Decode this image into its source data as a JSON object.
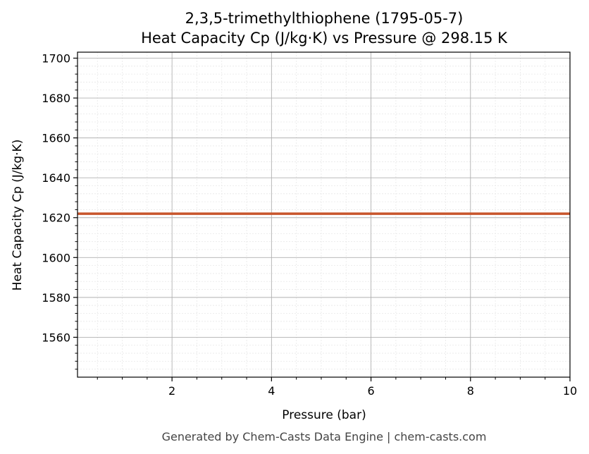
{
  "chart_data": {
    "type": "line",
    "title": "2,3,5-trimethylthiophene (1795-05-7)",
    "subtitle": "Heat Capacity Cp (J/kg·K) vs Pressure @ 298.15 K",
    "xlabel": "Pressure (bar)",
    "ylabel": "Heat Capacity Cp (J/kg·K)",
    "xlim": [
      0.1,
      10
    ],
    "ylim": [
      1540,
      1703
    ],
    "x_ticks": [
      2,
      4,
      6,
      8,
      10
    ],
    "y_ticks": [
      1560,
      1580,
      1600,
      1620,
      1640,
      1660,
      1680,
      1700
    ],
    "grid": true,
    "minor_grid": true,
    "series": [
      {
        "color": "#c8552b",
        "x": [
          0.1,
          1,
          2,
          3,
          4,
          5,
          6,
          7,
          8,
          9,
          10
        ],
        "y": [
          1622,
          1622,
          1622,
          1622,
          1622,
          1622,
          1622,
          1622,
          1622,
          1622,
          1622
        ]
      }
    ]
  },
  "footer": "Generated by Chem-Casts Data Engine | chem-casts.com"
}
